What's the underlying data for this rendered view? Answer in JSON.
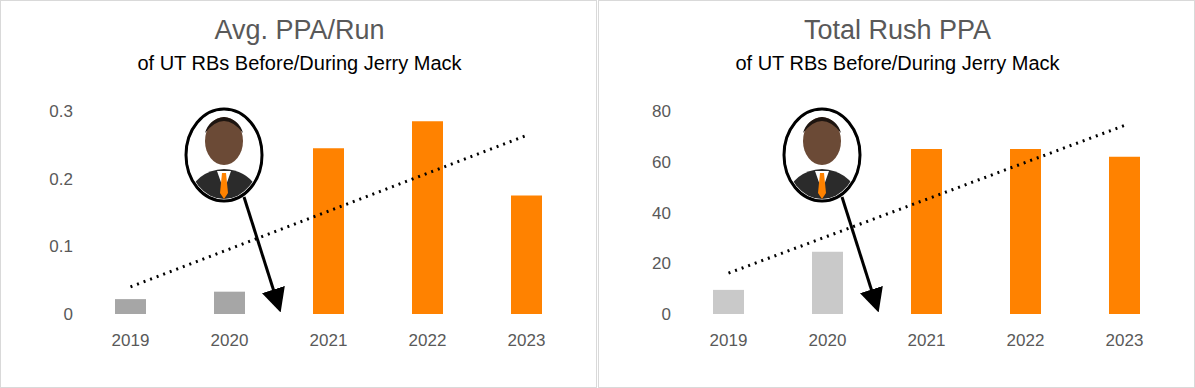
{
  "chart_data": [
    {
      "type": "bar",
      "title": "Avg. PPA/Run",
      "subtitle": "of UT RBs Before/During Jerry Mack",
      "categories": [
        "2019",
        "2020",
        "2021",
        "2022",
        "2023"
      ],
      "values": [
        0.022,
        0.033,
        0.245,
        0.285,
        0.175
      ],
      "colors": [
        "#a6a6a6",
        "#a6a6a6",
        "#ff8200",
        "#ff8200",
        "#ff8200"
      ],
      "trendline": {
        "values": [
          0.04,
          0.096,
          0.152,
          0.208,
          0.264
        ],
        "color": "#000000",
        "line_style": "dotted"
      },
      "ylim": [
        0,
        0.3
      ],
      "yticks": [
        0,
        0.1,
        0.2,
        0.3
      ],
      "grid": false
    },
    {
      "type": "bar",
      "title": "Total Rush PPA",
      "subtitle": "of UT RBs Before/During Jerry Mack",
      "categories": [
        "2019",
        "2020",
        "2021",
        "2022",
        "2023"
      ],
      "values": [
        9.5,
        24.5,
        65,
        65,
        62
      ],
      "colors": [
        "#c9c9c9",
        "#c9c9c9",
        "#ff8200",
        "#ff8200",
        "#ff8200"
      ],
      "trendline": {
        "values": [
          16.1,
          30.65,
          45.2,
          59.75,
          74.3
        ],
        "color": "#000000",
        "line_style": "dotted"
      },
      "ylim": [
        0,
        80
      ],
      "yticks": [
        0,
        20,
        40,
        60,
        80
      ],
      "grid": false
    }
  ]
}
